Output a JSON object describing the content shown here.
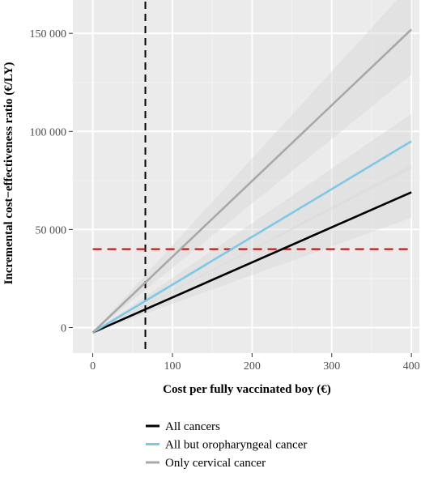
{
  "chart_data": {
    "type": "line",
    "xlabel": "Cost per fully vaccinated boy (€)",
    "ylabel": "Incremental cost−effectiveness ratio (€/LY)",
    "xlim": [
      -25,
      410
    ],
    "ylim": [
      -13000,
      167000
    ],
    "x_ticks": [
      0,
      100,
      200,
      300,
      400
    ],
    "x_tick_labels": [
      "0",
      "100",
      "200",
      "300",
      "400"
    ],
    "y_ticks": [
      0,
      50000,
      100000,
      150000
    ],
    "y_tick_labels": [
      "0",
      "50 000",
      "100 000",
      "150 000"
    ],
    "grid": true,
    "legend_position": "bottom",
    "series": [
      {
        "name": "All cancers",
        "color": "#000000",
        "x": [
          0,
          400
        ],
        "y": [
          -2500,
          69000
        ],
        "ci_low": [
          -2500,
          56000
        ],
        "ci_high": [
          -2500,
          83000
        ]
      },
      {
        "name": "All but oropharyngeal cancer",
        "color": "#7ec8e3",
        "x": [
          0,
          400
        ],
        "y": [
          -2500,
          95000
        ],
        "ci_low": [
          -2500,
          81000
        ],
        "ci_high": [
          -2500,
          109000
        ]
      },
      {
        "name": "Only cervical cancer",
        "color": "#a8a8a8",
        "x": [
          0,
          400
        ],
        "y": [
          -2500,
          152000
        ],
        "ci_low": [
          -2500,
          129000
        ],
        "ci_high": [
          -2500,
          175000
        ]
      }
    ],
    "reference_lines": [
      {
        "orientation": "vertical",
        "value": 66,
        "color": "#000000",
        "style": "dashed"
      },
      {
        "orientation": "horizontal",
        "value": 40000,
        "color": "#cc0000",
        "style": "dashed"
      }
    ]
  }
}
